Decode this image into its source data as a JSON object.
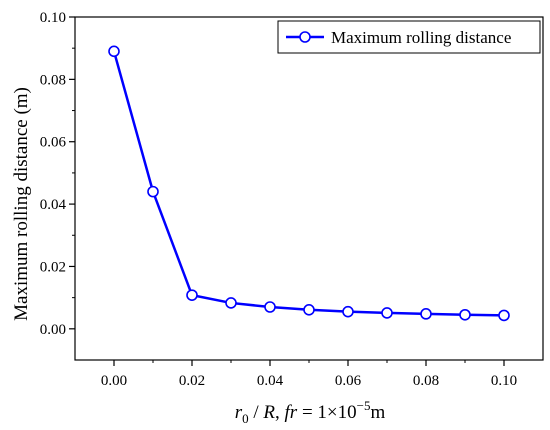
{
  "chart_data": {
    "type": "line",
    "title": "",
    "xlabel_parts": {
      "var": "r",
      "sub": "0",
      "mid": " / ",
      "R": "R",
      "comma": ", ",
      "fr": "fr",
      "eq": " = 1×10",
      "exp": "−5",
      "unit": "m"
    },
    "ylabel": "Maximum rolling distance (m)",
    "xlim": [
      -0.01,
      0.11
    ],
    "ylim": [
      -0.01,
      0.1
    ],
    "xticks": [
      0.0,
      0.02,
      0.04,
      0.06,
      0.08,
      0.1
    ],
    "xtick_labels": [
      "0.00",
      "0.02",
      "0.04",
      "0.06",
      "0.08",
      "0.10"
    ],
    "yticks": [
      0.0,
      0.02,
      0.04,
      0.06,
      0.08,
      0.1
    ],
    "ytick_labels": [
      "0.00",
      "0.02",
      "0.04",
      "0.06",
      "0.08",
      "0.10"
    ],
    "grid": false,
    "legend_position": "top-right",
    "series": [
      {
        "name": "Maximum rolling distance",
        "color": "#0000ff",
        "marker": "open-circle",
        "x": [
          0.0,
          0.01,
          0.02,
          0.03,
          0.04,
          0.05,
          0.06,
          0.07,
          0.08,
          0.09,
          0.1
        ],
        "y": [
          0.089,
          0.044,
          0.0108,
          0.0083,
          0.007,
          0.0061,
          0.0055,
          0.0051,
          0.0048,
          0.0045,
          0.0043
        ]
      }
    ]
  }
}
